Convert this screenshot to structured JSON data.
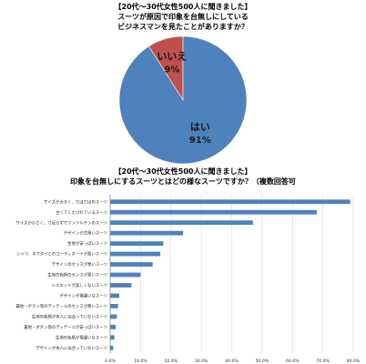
{
  "chart_data": [
    {
      "type": "pie",
      "title": "【20代～30代女性500人に聞きました】",
      "subtitle": [
        "スーツが原因で印象を台無しにしている",
        "ビジネスマンを見たことがありますか？"
      ],
      "slices": [
        {
          "label": "はい",
          "value": 91,
          "value_label": "91%",
          "color": "#4f81bd"
        },
        {
          "label": "いいえ",
          "value": 9,
          "value_label": "9%",
          "color": "#c0504d"
        }
      ]
    },
    {
      "type": "bar",
      "orientation": "horizontal",
      "title": "【20代～30代女性500人に聞きました】",
      "subtitle": "印象を台無しにするスーツとはどの様なスーツですか？（複数回答可",
      "color": "#4f81bd",
      "grid": true,
      "xlim": [
        0,
        80
      ],
      "x_ticks": [
        "0.0%",
        "10.0%",
        "20.0%",
        "30.0%",
        "40.0%",
        "50.0%",
        "60.0%",
        "70.0%",
        "80.0%"
      ],
      "categories": [
        "サイズが大きく、だぼだぼのスーツ",
        "古くてくたびれているスーツ",
        "サイズが小さく、寸足らずでツンツルテンのスーツ",
        "デザインが古臭いスーツ",
        "生地が安っぽいスーツ",
        "シャツ、ネクタイとのコーディネートが悪いスーツ",
        "デザインのセンスが悪いスーツ",
        "生地の色柄のセンスが悪いスーツ",
        "シルエットが美しくないスーツ",
        "デザインが場違いなスーツ",
        "裏地・ボタン等のディテールのセンスが悪いスーツ",
        "生地の色柄が本人に似合っていないスーツ",
        "裏地・ボタン等のディテールが安っぽいスーツ",
        "生地の色柄が場違いなスーツ",
        "デザインが本人に似合っていないスーツ"
      ],
      "values": [
        79,
        68,
        47,
        24,
        17.5,
        16.5,
        14,
        10,
        7,
        3,
        2.6,
        2.2,
        1.8,
        1.4,
        1
      ]
    }
  ]
}
